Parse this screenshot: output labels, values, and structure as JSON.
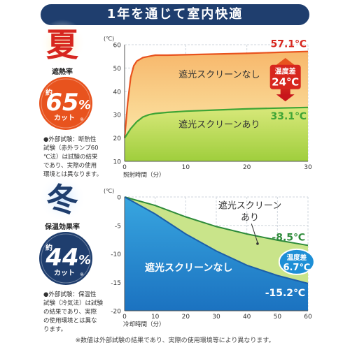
{
  "header": {
    "title": "1年を通じて室内快適"
  },
  "summer": {
    "season": "夏",
    "rate_label": "遮熱率",
    "rate_prefix": "約",
    "rate_value": "65",
    "rate_unit": "%",
    "rate_suffix": "カット",
    "note_mark": "※",
    "note": [
      "●外部試験：断熱性",
      "試験（赤外ランプ60",
      "℃法）は試験の結果",
      "であり、実際の使用",
      "環境とは異なります。"
    ]
  },
  "winter": {
    "season": "冬",
    "rate_label": "保温効果率",
    "rate_prefix": "約",
    "rate_value": "44",
    "rate_unit": "%",
    "rate_suffix": "カット",
    "note_mark": "※",
    "note": [
      "●外部試験：保温性",
      "試験（冷気法）は試験",
      "の結果であり、実際",
      "の使用環境とは異な",
      "ります。"
    ]
  },
  "footnote": "※数値は外部試験の結果であり、実際の使用環境等により異なります。",
  "colors": {
    "summer_red": "#e8531e",
    "summer_green": "#3fa535",
    "winter_blue": "#1e8fd6",
    "winter_green": "#2e8b3a",
    "navy": "#1f3e6e"
  },
  "chart_data": [
    {
      "type": "area",
      "unit_label": "(℃)",
      "xlabel": "照射時間（分）",
      "xlim": [
        0,
        30
      ],
      "ylim": [
        10,
        60
      ],
      "xticks": [
        0,
        10,
        20,
        30
      ],
      "yticks": [
        10,
        20,
        30,
        40,
        50,
        60
      ],
      "grid": true,
      "series": [
        {
          "name": "遮光スクリーンなし",
          "x": [
            0,
            0.5,
            1,
            1.5,
            2,
            3,
            4,
            5,
            7,
            10,
            15,
            20,
            25,
            30
          ],
          "values": [
            20,
            35,
            46,
            51,
            53,
            54.5,
            55,
            55.5,
            55.5,
            55.7,
            56,
            56.3,
            56.7,
            57.1
          ]
        },
        {
          "name": "遮光スクリーンあり",
          "x": [
            0,
            1,
            2,
            3,
            4,
            5,
            7,
            10,
            15,
            20,
            25,
            30
          ],
          "values": [
            20,
            24,
            27,
            29,
            30,
            30.5,
            31,
            31.5,
            32,
            32.5,
            32.8,
            33.1
          ]
        }
      ],
      "end_labels": [
        "57.1℃",
        "33.1℃"
      ],
      "diff_label": [
        "温度差",
        "24℃"
      ]
    },
    {
      "type": "area",
      "unit_label": "(℃)",
      "xlabel": "冷却時間（分）",
      "xlim": [
        0,
        60
      ],
      "ylim": [
        -20,
        0
      ],
      "xticks": [
        0,
        10,
        20,
        30,
        40,
        50,
        60
      ],
      "yticks": [
        0,
        -5,
        -10,
        -15,
        -20
      ],
      "grid": true,
      "series": [
        {
          "name": "遮光スクリーンあり",
          "x": [
            0,
            10,
            20,
            30,
            40,
            50,
            60
          ],
          "values": [
            0,
            -1.5,
            -3.5,
            -5.2,
            -6.5,
            -7.6,
            -8.5
          ]
        },
        {
          "name": "遮光スクリーンなし",
          "x": [
            0,
            10,
            20,
            30,
            40,
            50,
            60
          ],
          "values": [
            0,
            -3,
            -6.5,
            -9.5,
            -12,
            -13.8,
            -15.2
          ]
        }
      ],
      "end_labels": [
        "-8.5℃",
        "-15.2℃"
      ],
      "diff_label": [
        "温度差",
        "6.7℃"
      ]
    }
  ]
}
